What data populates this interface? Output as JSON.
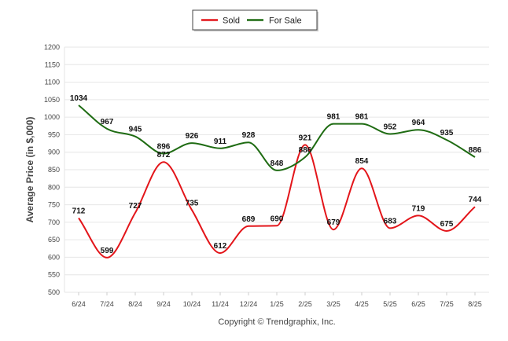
{
  "chart_data": {
    "type": "line",
    "categories": [
      "6/24",
      "7/24",
      "8/24",
      "9/24",
      "10/24",
      "11/24",
      "12/24",
      "1/25",
      "2/25",
      "3/25",
      "4/25",
      "5/25",
      "6/25",
      "7/25",
      "8/25"
    ],
    "series": [
      {
        "name": "Sold",
        "color": "#e3151a",
        "values": [
          712,
          599,
          727,
          872,
          735,
          612,
          689,
          690,
          921,
          679,
          854,
          683,
          719,
          675,
          744
        ]
      },
      {
        "name": "For Sale",
        "color": "#1e6b12",
        "values": [
          1034,
          967,
          945,
          896,
          926,
          911,
          928,
          848,
          886,
          981,
          981,
          952,
          964,
          935,
          886
        ]
      }
    ],
    "ylabel": "Average Price (in $,000)",
    "ylim": [
      500,
      1200
    ],
    "yticks": [
      500,
      550,
      600,
      650,
      700,
      750,
      800,
      850,
      900,
      950,
      1000,
      1050,
      1100,
      1150,
      1200
    ],
    "grid": true,
    "legend": "top-center",
    "credit": "Copyright © Trendgraphix, Inc."
  }
}
